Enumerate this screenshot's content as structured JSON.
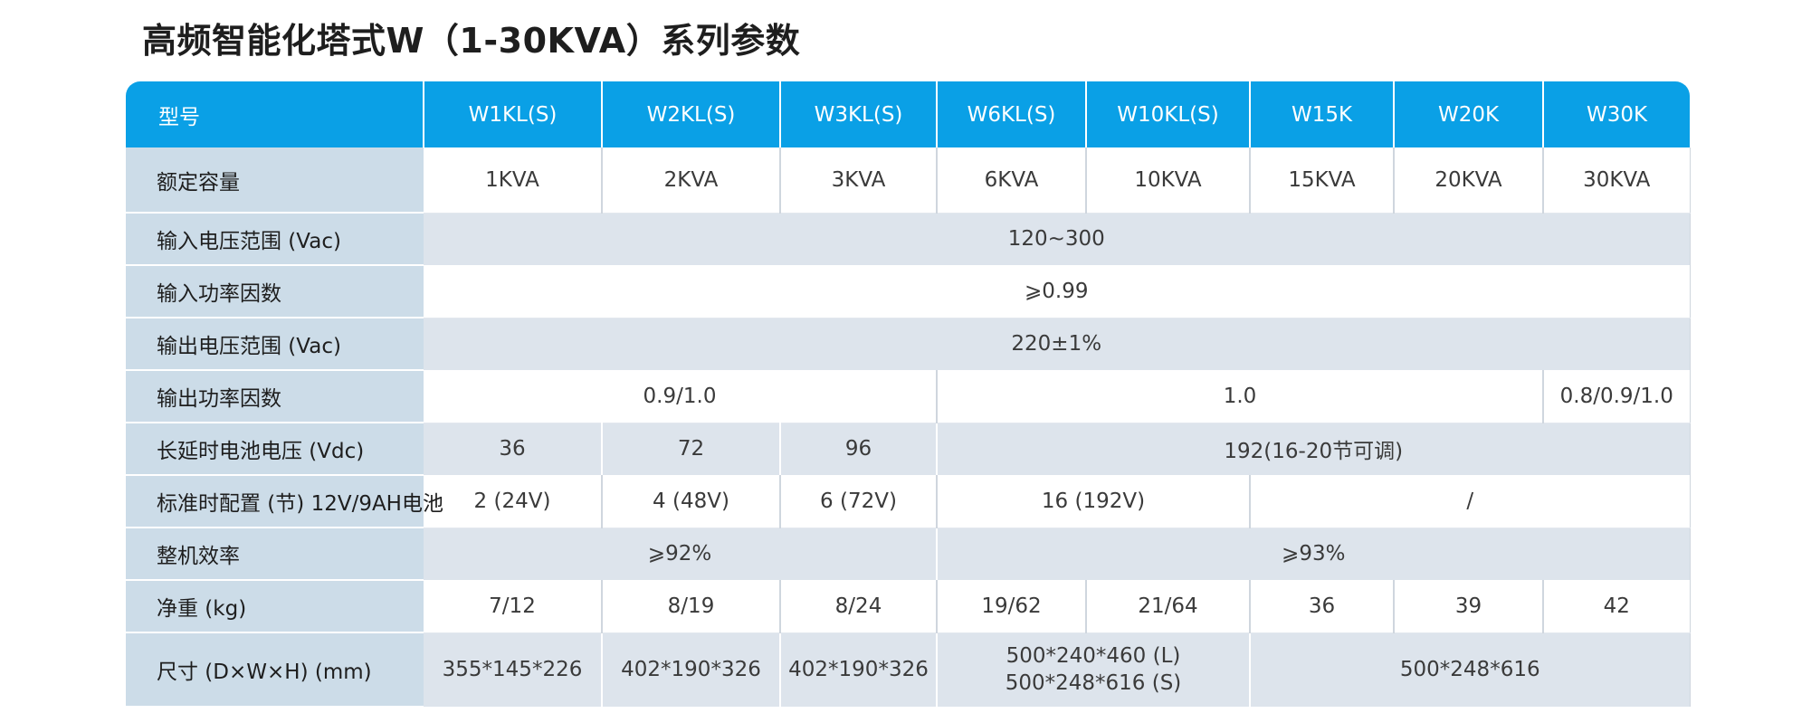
{
  "title": "高频智能化塔式W（1-30KVA）系列参数",
  "header": {
    "label": "型号",
    "models": [
      "W1KL(S)",
      "W2KL(S)",
      "W3KL(S)",
      "W6KL(S)",
      "W10KL(S)",
      "W15K",
      "W20K",
      "W30K"
    ]
  },
  "rows": {
    "capacity": {
      "label": "额定容量",
      "values": [
        "1KVA",
        "2KVA",
        "3KVA",
        "6KVA",
        "10KVA",
        "15KVA",
        "20KVA",
        "30KVA"
      ]
    },
    "input_voltage": {
      "label": "输入电压范围 (Vac)",
      "value": "120~300"
    },
    "input_pf": {
      "label": "输入功率因数",
      "value": "⩾0.99"
    },
    "output_voltage": {
      "label": "输出电压范围 (Vac)",
      "value": "220±1%"
    },
    "output_pf": {
      "label": "输出功率因数",
      "values": [
        "0.9/1.0",
        "1.0",
        "0.8/0.9/1.0"
      ]
    },
    "battery_voltage": {
      "label": "长延时电池电压 (Vdc)",
      "values": [
        "36",
        "72",
        "96",
        "192(16-20节可调)"
      ]
    },
    "standard_battery": {
      "label": "标准时配置 (节) 12V/9AH电池",
      "values": [
        "2 (24V)",
        "4 (48V)",
        "6 (72V)",
        "16 (192V)",
        "/"
      ]
    },
    "efficiency": {
      "label": "整机效率",
      "values": [
        "⩾92%",
        "⩾93%"
      ]
    },
    "weight": {
      "label": "净重 (kg)",
      "values": [
        "7/12",
        "8/19",
        "8/24",
        "19/62",
        "21/64",
        "36",
        "39",
        "42"
      ]
    },
    "size": {
      "label": "尺寸 (D×W×H) (mm)",
      "values": [
        "355*145*226",
        "402*190*326",
        "402*190*326",
        "500*240*460 (L)",
        "500*248*616 (S)",
        "500*248*616"
      ]
    }
  }
}
